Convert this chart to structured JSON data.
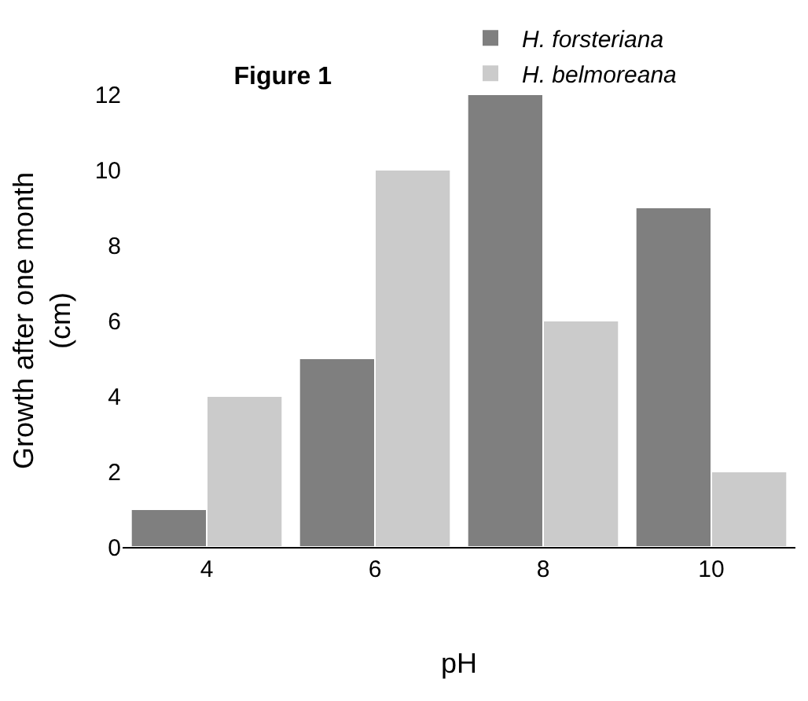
{
  "chart_data": {
    "type": "bar",
    "title": "Figure 1",
    "xlabel": "pH",
    "ylabel": "Growth after one month\n(cm)",
    "categories": [
      "4",
      "6",
      "8",
      "10"
    ],
    "series": [
      {
        "name": "H. forsteriana",
        "color": "#7f7f7f",
        "values": [
          1,
          5,
          12,
          9
        ]
      },
      {
        "name": "H. belmoreana",
        "color": "#cbcbcb",
        "values": [
          4,
          10,
          6,
          2
        ]
      }
    ],
    "ylim": [
      0,
      12
    ],
    "yticks": [
      0,
      2,
      4,
      6,
      8,
      10,
      12
    ],
    "legend": "top right"
  }
}
